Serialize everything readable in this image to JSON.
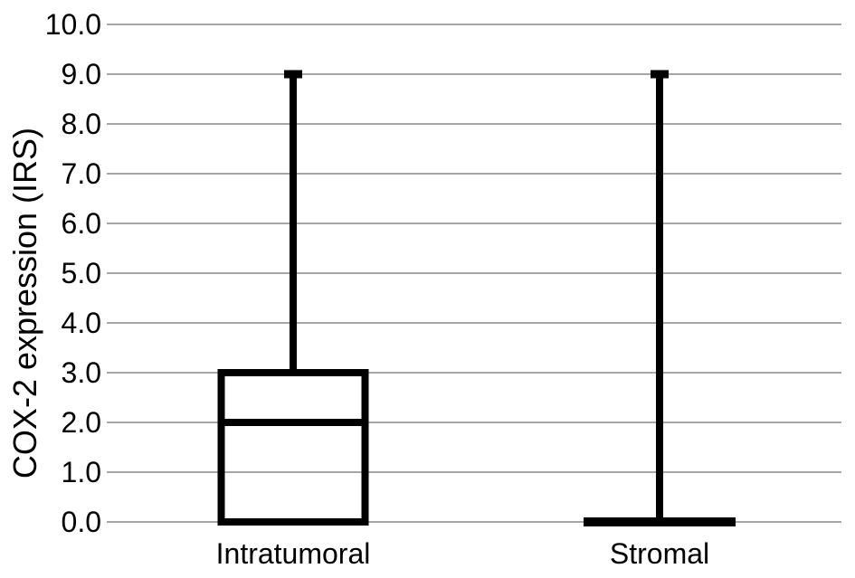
{
  "chart_data": {
    "type": "box",
    "title": "",
    "ylabel": "COX-2 expression (IRS)",
    "xlabel": "",
    "categories": [
      "Intratumoral",
      "Stromal"
    ],
    "ylim": [
      0.0,
      10.0
    ],
    "ytick_step": 1.0,
    "yticks": [
      "0.0",
      "1.0",
      "2.0",
      "3.0",
      "4.0",
      "5.0",
      "6.0",
      "7.0",
      "8.0",
      "9.0",
      "10.0"
    ],
    "grid": "horizontal-gridlines-only",
    "legend_position": "none",
    "series": [
      {
        "name": "Intratumoral",
        "min": 0.0,
        "q1": 0.0,
        "median": 2.0,
        "q3": 3.0,
        "max": 9.0
      },
      {
        "name": "Stromal",
        "min": 0.0,
        "q1": 0.0,
        "median": 0.0,
        "q3": 0.0,
        "max": 9.0
      }
    ],
    "colors": {
      "box_stroke": "#000000",
      "gridline": "#a6a6a6",
      "text": "#000000",
      "background": "#ffffff"
    }
  }
}
